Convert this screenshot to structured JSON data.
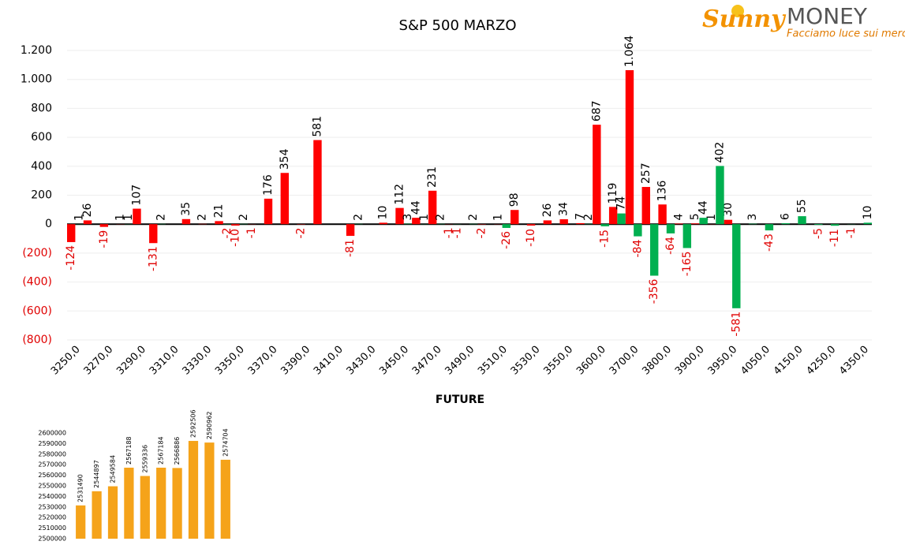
{
  "logo": {
    "brand": "Sunny",
    "brand2": "MONEY",
    "tagline": "Facciamo luce sui mercati"
  },
  "chart_data": [
    {
      "type": "bar",
      "title": "S&P 500 MARZO",
      "categories": [
        "3250,0",
        null,
        "3270,0",
        null,
        "3290,0",
        null,
        "3310,0",
        null,
        "3330,0",
        null,
        "3350,0",
        null,
        "3370,0",
        null,
        "3390,0",
        null,
        "3410,0",
        null,
        "3430,0",
        null,
        "3450,0",
        null,
        "3470,0",
        null,
        "3490,0",
        null,
        "3510,0",
        null,
        "3530,0",
        null,
        "3550,0",
        null,
        "3600,0",
        null,
        "3700,0",
        null,
        "3800,0",
        null,
        "3900,0",
        null,
        "3950,0",
        null,
        "4050,0",
        null,
        "4150,0",
        null,
        "4250,0",
        null,
        "4350,0"
      ],
      "series": [
        {
          "color": "#ff0000",
          "values": [
            -124,
            26,
            -19,
            1,
            107,
            -131,
            null,
            35,
            2,
            21,
            -10,
            -1,
            176,
            354,
            -2,
            581,
            null,
            -81,
            null,
            10,
            112,
            44,
            231,
            -1,
            null,
            -2,
            1,
            98,
            -10,
            26,
            34,
            7,
            687,
            119,
            1064,
            257,
            136,
            4,
            5,
            1,
            30,
            null,
            null,
            null,
            null,
            null,
            null,
            null,
            null
          ],
          "value_labels": [
            "-124",
            "26",
            "-19",
            "1",
            "107",
            "-131",
            null,
            "35",
            "2",
            "21",
            "-10",
            "-1",
            "176",
            "354",
            "-2",
            "581",
            null,
            "-81",
            null,
            "10",
            "112",
            "44",
            "231",
            "-1",
            null,
            "-2",
            "1",
            "98",
            "-10",
            "26",
            "34",
            "7",
            "687",
            "119",
            "1.064",
            "257",
            "136",
            "4",
            "5",
            "1",
            "30",
            null,
            null,
            null,
            null,
            null,
            null,
            null,
            null
          ]
        },
        {
          "color": "#00b050",
          "values": [
            1,
            null,
            null,
            1,
            null,
            2,
            null,
            null,
            null,
            -2,
            2,
            null,
            null,
            null,
            null,
            null,
            null,
            2,
            null,
            null,
            3,
            1,
            2,
            -1,
            2,
            null,
            -26,
            null,
            null,
            null,
            null,
            2,
            -15,
            74,
            -84,
            -356,
            -64,
            -165,
            44,
            402,
            -581,
            3,
            -43,
            6,
            55,
            -5,
            -11,
            -1,
            10
          ]
        }
      ],
      "ylim": [
        -800,
        1200
      ],
      "yticks": [
        {
          "value": -800,
          "label": "(800)"
        },
        {
          "value": -600,
          "label": "(600)"
        },
        {
          "value": -400,
          "label": "(400)"
        },
        {
          "value": -200,
          "label": "(200)"
        },
        0,
        200,
        400,
        600,
        800,
        {
          "value": 1000,
          "label": "1.000"
        },
        {
          "value": 1200,
          "label": "1.200"
        }
      ],
      "grid": true
    },
    {
      "type": "bar",
      "title": "FUTURE",
      "values": [
        2531490,
        2544897,
        2549584,
        2567188,
        2559336,
        2567184,
        2566886,
        2592506,
        2590962,
        2574704
      ],
      "color": "#f5a31a",
      "ylim": [
        2500000,
        2600000
      ],
      "yticks": [
        2500000,
        2510000,
        2520000,
        2530000,
        2540000,
        2550000,
        2560000,
        2570000,
        2580000,
        2590000,
        2600000
      ],
      "grid": false
    }
  ]
}
